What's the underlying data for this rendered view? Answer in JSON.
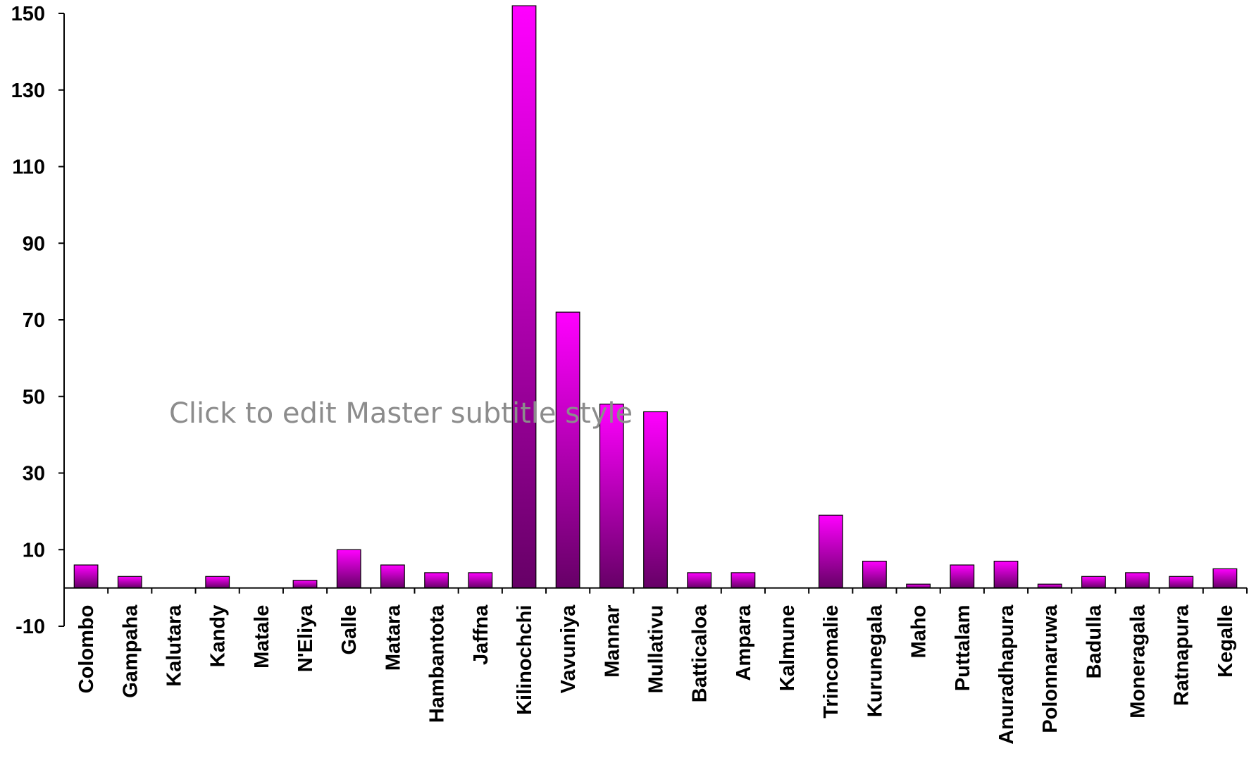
{
  "placeholder_text": "Click to edit Master subtitle style",
  "colors": {
    "bar_top": "#ff00ff",
    "bar_bottom": "#660066",
    "axis": "#000000"
  },
  "chart_data": {
    "type": "bar",
    "title": "",
    "xlabel": "",
    "ylabel": "",
    "ylim": [
      -10,
      150
    ],
    "yticks": [
      -10,
      10,
      30,
      50,
      70,
      90,
      110,
      130,
      150
    ],
    "grid": false,
    "categories": [
      "Colombo",
      "Gampaha",
      "Kalutara",
      "Kandy",
      "Matale",
      "N'Eliya",
      "Galle",
      "Matara",
      "Hambantota",
      "Jaffna",
      "Kilinochchi",
      "Vavuniya",
      "Mannar",
      "Mullativu",
      "Batticaloa",
      "Ampara",
      "Kalmune",
      "Trincomalie",
      "Kurunegala",
      "Maho",
      "Puttalam",
      "Anuradhapura",
      "Polonnaruwa",
      "Badulla",
      "Moneragala",
      "Ratnapura",
      "Kegalle"
    ],
    "values": [
      6,
      3,
      0,
      3,
      0,
      2,
      10,
      6,
      4,
      4,
      152,
      72,
      48,
      46,
      4,
      4,
      0,
      19,
      7,
      1,
      6,
      7,
      1,
      3,
      4,
      3,
      5
    ]
  }
}
